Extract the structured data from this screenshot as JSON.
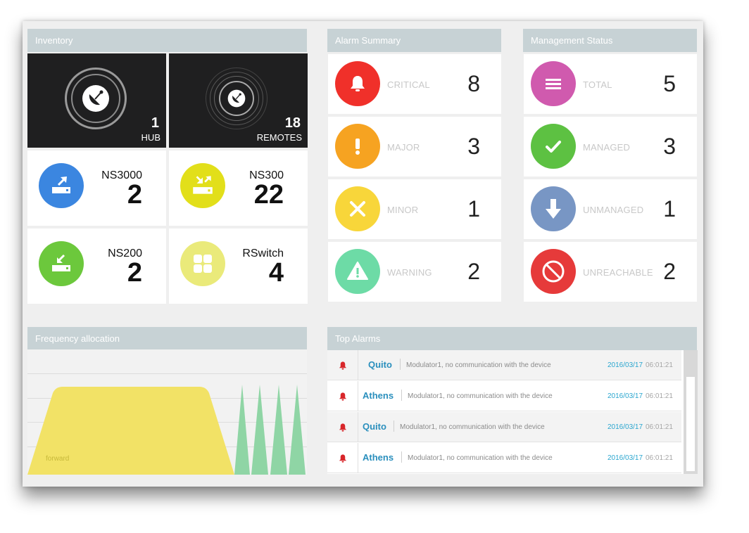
{
  "inventory": {
    "title": "Inventory",
    "hub": {
      "count": "1",
      "label": "HUB",
      "icon": "satellite-dish-icon"
    },
    "remotes": {
      "count": "18",
      "label": "REMOTES",
      "icon": "satellite-dish-icon"
    },
    "devices": [
      {
        "name": "NS3000",
        "count": "2",
        "color": "#3b86e0",
        "icon": "modem-up-arrow-icon"
      },
      {
        "name": "NS300",
        "count": "22",
        "color": "#e2df1a",
        "icon": "modem-cross-arrows-icon"
      },
      {
        "name": "NS200",
        "count": "2",
        "color": "#6cc83c",
        "icon": "modem-down-arrow-icon"
      },
      {
        "name": "RSwitch",
        "count": "4",
        "color": "#eaea7a",
        "icon": "grid-squares-icon"
      }
    ]
  },
  "alarm_summary": {
    "title": "Alarm Summary",
    "items": [
      {
        "label": "CRITICAL",
        "value": "8",
        "color": "#f0302a",
        "icon": "bell-icon"
      },
      {
        "label": "MAJOR",
        "value": "3",
        "color": "#f6a321",
        "icon": "exclamation-icon"
      },
      {
        "label": "MINOR",
        "value": "1",
        "color": "#f8d63a",
        "icon": "x-mark-icon"
      },
      {
        "label": "WARNING",
        "value": "2",
        "color": "#6ddba6",
        "icon": "warning-triangle-icon"
      }
    ]
  },
  "management_status": {
    "title": "Management Status",
    "items": [
      {
        "label": "TOTAL",
        "value": "5",
        "color": "#d05aae",
        "icon": "list-lines-icon"
      },
      {
        "label": "MANAGED",
        "value": "3",
        "color": "#5dc142",
        "icon": "checkmark-icon"
      },
      {
        "label": "UNMANAGED",
        "value": "1",
        "color": "#7896c4",
        "icon": "down-arrow-icon"
      },
      {
        "label": "UNREACHABLE",
        "value": "2",
        "color": "#e63a3a",
        "icon": "no-entry-icon"
      }
    ]
  },
  "frequency": {
    "title": "Frequency allocation",
    "forward_label": "forward",
    "forward_color": "#f2e266",
    "return_color": "#8fd5a5"
  },
  "top_alarms": {
    "title": "Top Alarms",
    "rows": [
      {
        "site": "Quito",
        "message": "Modulator1, no communication with the device",
        "date": "2016/03/17",
        "time": "06:01:21"
      },
      {
        "site": "Athens",
        "message": "Modulator1, no communication with the device",
        "date": "2016/03/17",
        "time": "06:01:21"
      },
      {
        "site": "Quito",
        "message": "Modulator1, no communication with the device",
        "date": "2016/03/17",
        "time": "06:01:21"
      },
      {
        "site": "Athens",
        "message": "Modulator1, no communication with the device",
        "date": "2016/03/17",
        "time": "06:01:21"
      }
    ]
  }
}
